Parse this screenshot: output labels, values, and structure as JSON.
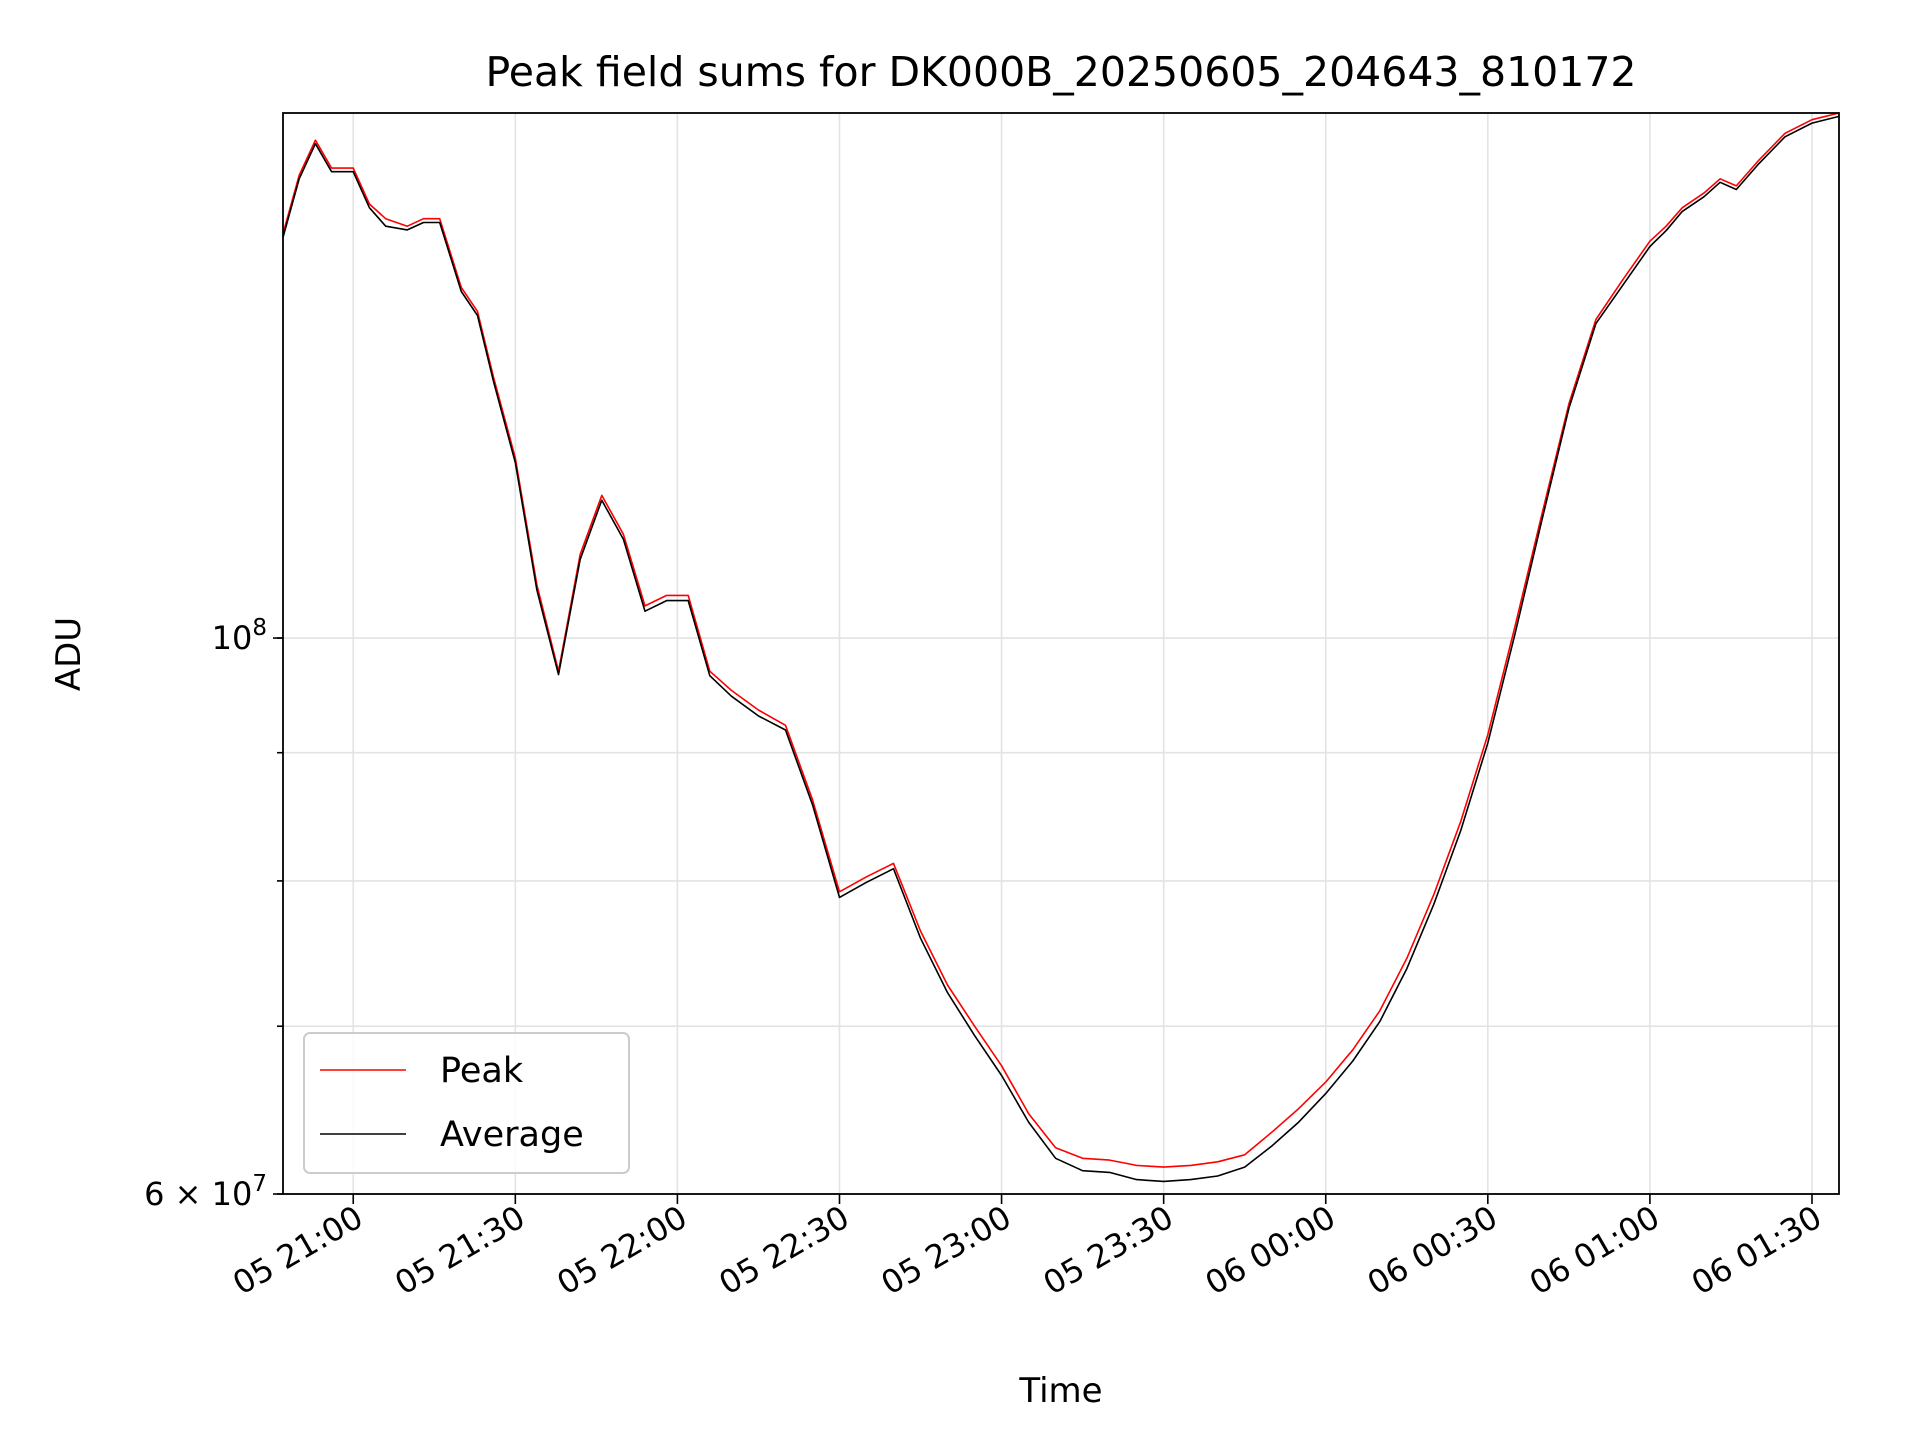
{
  "chart_data": {
    "type": "line",
    "title": "Peak field sums for DK000B_20250605_204643_810172",
    "xlabel": "Time",
    "ylabel": "ADU",
    "yscale": "log",
    "ylim": [
      60000000,
      162000000
    ],
    "xlim": [
      "05 20:47",
      "06 01:35"
    ],
    "x_tick_labels": [
      "05 21:00",
      "05 21:30",
      "05 22:00",
      "05 22:30",
      "05 23:00",
      "05 23:30",
      "06 00:00",
      "06 00:30",
      "06 01:00",
      "06 01:30"
    ],
    "y_tick_labels": [
      {
        "value": 100000000,
        "base": "10",
        "exp": "8",
        "prefix": ""
      },
      {
        "value": 60000000,
        "base": "10",
        "exp": "7",
        "prefix": "6 × "
      }
    ],
    "y_minor_ticks": [
      60000000,
      70000000,
      80000000,
      90000000,
      100000000
    ],
    "grid": true,
    "legend": {
      "placement": "lower-left"
    },
    "x": [
      "05 20:47",
      "05 20:50",
      "05 20:53",
      "05 20:56",
      "05 21:00",
      "05 21:03",
      "05 21:06",
      "05 21:10",
      "05 21:13",
      "05 21:16",
      "05 21:20",
      "05 21:23",
      "05 21:26",
      "05 21:30",
      "05 21:34",
      "05 21:38",
      "05 21:42",
      "05 21:46",
      "05 21:50",
      "05 21:54",
      "05 21:58",
      "05 22:02",
      "05 22:06",
      "05 22:10",
      "05 22:15",
      "05 22:20",
      "05 22:25",
      "05 22:30",
      "05 22:35",
      "05 22:40",
      "05 22:45",
      "05 22:50",
      "05 22:55",
      "05 23:00",
      "05 23:05",
      "05 23:10",
      "05 23:15",
      "05 23:20",
      "05 23:25",
      "05 23:30",
      "05 23:35",
      "05 23:40",
      "05 23:45",
      "05 23:50",
      "05 23:55",
      "06 00:00",
      "06 00:05",
      "06 00:10",
      "06 00:15",
      "06 00:20",
      "06 00:25",
      "06 00:30",
      "06 00:35",
      "06 00:40",
      "06 00:45",
      "06 00:50",
      "06 00:55",
      "06 01:00",
      "06 01:03",
      "06 01:06",
      "06 01:10",
      "06 01:13",
      "06 01:16",
      "06 01:20",
      "06 01:25",
      "06 01:30",
      "06 01:35"
    ],
    "series": [
      {
        "name": "Peak",
        "color": "#ff0000",
        "values": [
          145000000,
          153000000,
          158000000,
          154000000,
          154000000,
          149000000,
          147000000,
          146000000,
          147000000,
          147000000,
          138000000,
          135000000,
          127000000,
          118000000,
          105000000,
          97000000,
          108000000,
          114000000,
          110000000,
          103000000,
          104000000,
          104000000,
          97000000,
          95300000,
          93600000,
          92300000,
          86200000,
          79200000,
          80300000,
          81300000,
          76400000,
          72700000,
          70000000,
          67500000,
          64600000,
          62600000,
          62000000,
          61900000,
          61600000,
          61500000,
          61600000,
          61800000,
          62200000,
          63500000,
          64900000,
          66500000,
          68500000,
          71000000,
          74500000,
          79000000,
          84500000,
          91500000,
          101000000,
          112000000,
          124000000,
          134000000,
          139000000,
          144000000,
          146000000,
          148500000,
          150500000,
          152500000,
          151500000,
          155000000,
          159000000,
          161000000,
          162000000
        ]
      },
      {
        "name": "Average",
        "color": "#000000",
        "values": [
          144500000,
          152500000,
          157500000,
          153500000,
          153500000,
          148500000,
          146000000,
          145500000,
          146500000,
          146500000,
          137500000,
          134500000,
          126500000,
          117500000,
          104500000,
          96700000,
          107500000,
          113500000,
          109500000,
          102500000,
          103500000,
          103500000,
          96600000,
          94800000,
          93100000,
          91900000,
          85800000,
          78800000,
          79900000,
          80900000,
          75900000,
          72200000,
          69400000,
          66900000,
          64100000,
          62000000,
          61300000,
          61200000,
          60800000,
          60700000,
          60800000,
          61000000,
          61500000,
          62700000,
          64100000,
          65800000,
          67800000,
          70300000,
          73800000,
          78300000,
          83800000,
          90800000,
          100300000,
          111400000,
          123500000,
          133500000,
          138300000,
          143300000,
          145400000,
          148000000,
          150000000,
          152000000,
          151000000,
          154500000,
          158500000,
          160500000,
          161500000
        ]
      }
    ]
  }
}
